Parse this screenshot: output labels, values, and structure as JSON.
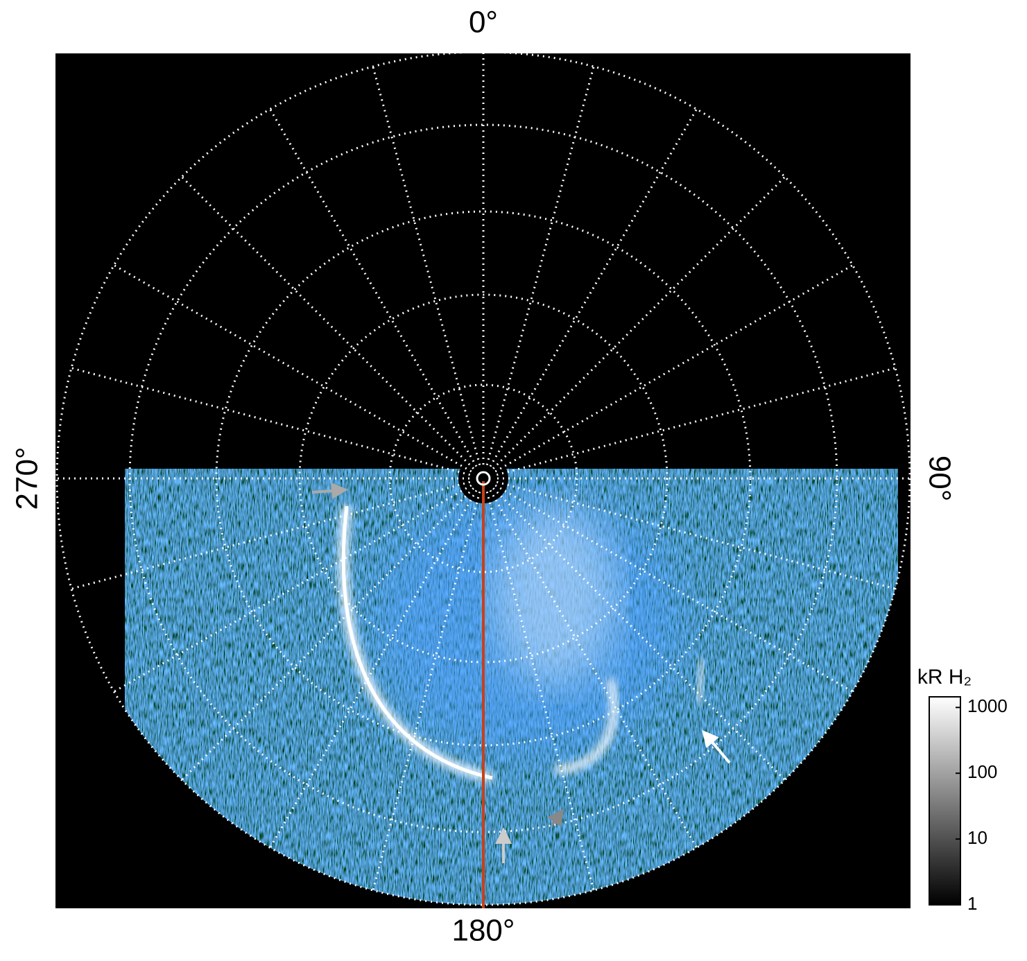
{
  "chart_data": {
    "type": "polar-image",
    "angle_ticks": [
      {
        "value": 0,
        "label": "0°"
      },
      {
        "value": 90,
        "label": "90°"
      },
      {
        "value": 180,
        "label": "180°"
      },
      {
        "value": 270,
        "label": "270°"
      }
    ],
    "colorbar": {
      "label": "kR H₂",
      "log": true,
      "clim": [
        1,
        1450
      ],
      "ticks": [
        1,
        10,
        100,
        1000
      ]
    }
  }
}
